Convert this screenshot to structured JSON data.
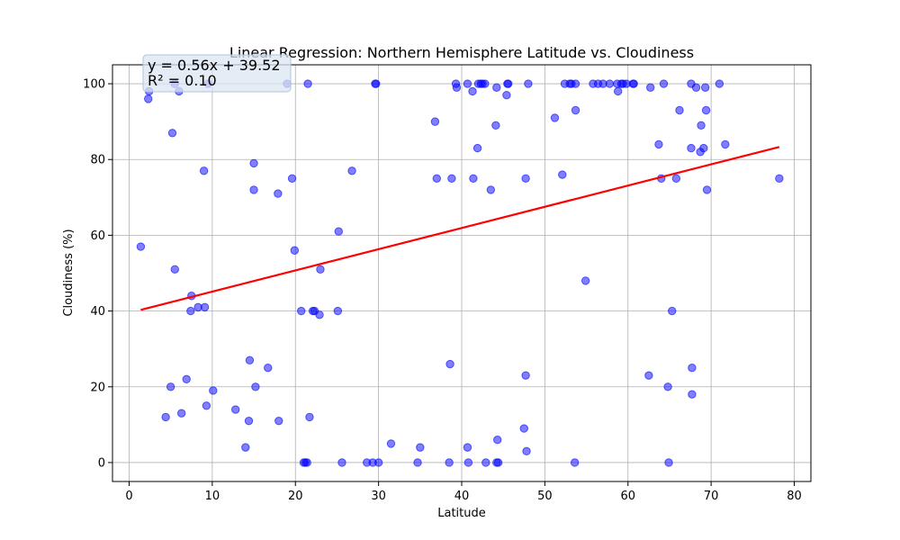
{
  "chart_data": {
    "type": "scatter",
    "title": "Linear Regression: Northern Hemisphere Latitude vs. Cloudiness",
    "xlabel": "Latitude",
    "ylabel": "Cloudiness (%)",
    "xlim": [
      -2,
      82
    ],
    "ylim": [
      -5,
      105
    ],
    "xticks": [
      0,
      10,
      20,
      30,
      40,
      50,
      60,
      70,
      80
    ],
    "yticks": [
      0,
      20,
      40,
      60,
      80,
      100
    ],
    "grid": true,
    "colors": {
      "points": "#0000ff",
      "line": "#ff0000",
      "annotation_box": "#dbe6f2"
    },
    "annotation": {
      "line1": "y = 0.56x + 39.52",
      "line2": "R² = 0.10"
    },
    "regression": {
      "slope": 0.56,
      "intercept": 39.52,
      "x_start": 1.4,
      "x_end": 78.2
    },
    "points": [
      [
        1.4,
        57
      ],
      [
        2.3,
        96
      ],
      [
        2.4,
        98
      ],
      [
        5.2,
        87
      ],
      [
        5.5,
        100
      ],
      [
        6.0,
        98
      ],
      [
        9.0,
        77
      ],
      [
        9.5,
        100
      ],
      [
        19.0,
        100
      ],
      [
        21.5,
        100
      ],
      [
        29.6,
        100
      ],
      [
        29.7,
        100
      ],
      [
        39.3,
        100
      ],
      [
        39.4,
        99
      ],
      [
        40.7,
        100
      ],
      [
        41.3,
        98
      ],
      [
        42.0,
        100
      ],
      [
        42.3,
        100
      ],
      [
        42.5,
        100
      ],
      [
        42.8,
        100
      ],
      [
        44.2,
        99
      ],
      [
        45.5,
        100
      ],
      [
        45.6,
        100
      ],
      [
        45.4,
        97
      ],
      [
        48.0,
        100
      ],
      [
        52.4,
        100
      ],
      [
        53.0,
        100
      ],
      [
        53.2,
        100
      ],
      [
        53.7,
        100
      ],
      [
        55.8,
        100
      ],
      [
        56.4,
        100
      ],
      [
        57.0,
        100
      ],
      [
        57.8,
        100
      ],
      [
        58.7,
        100
      ],
      [
        59.2,
        100
      ],
      [
        59.4,
        100
      ],
      [
        59.8,
        100
      ],
      [
        60.6,
        100
      ],
      [
        60.7,
        100
      ],
      [
        62.7,
        99
      ],
      [
        64.3,
        100
      ],
      [
        67.6,
        100
      ],
      [
        68.2,
        99
      ],
      [
        69.3,
        99
      ],
      [
        71.0,
        100
      ],
      [
        58.8,
        98
      ],
      [
        36.8,
        90
      ],
      [
        51.2,
        91
      ],
      [
        53.7,
        93
      ],
      [
        44.1,
        89
      ],
      [
        41.9,
        83
      ],
      [
        66.2,
        93
      ],
      [
        69.4,
        93
      ],
      [
        68.8,
        89
      ],
      [
        63.7,
        84
      ],
      [
        67.6,
        83
      ],
      [
        69.1,
        83
      ],
      [
        68.7,
        82
      ],
      [
        71.7,
        84
      ],
      [
        15.0,
        79
      ],
      [
        26.8,
        77
      ],
      [
        15.0,
        72
      ],
      [
        17.9,
        71
      ],
      [
        19.6,
        75
      ],
      [
        37.0,
        75
      ],
      [
        38.8,
        75
      ],
      [
        41.4,
        75
      ],
      [
        43.5,
        72
      ],
      [
        47.7,
        75
      ],
      [
        52.1,
        76
      ],
      [
        64.0,
        75
      ],
      [
        65.8,
        75
      ],
      [
        69.5,
        72
      ],
      [
        78.2,
        75
      ],
      [
        25.2,
        61
      ],
      [
        19.9,
        56
      ],
      [
        5.5,
        51
      ],
      [
        23.0,
        51
      ],
      [
        54.9,
        48
      ],
      [
        7.5,
        44
      ],
      [
        8.3,
        41
      ],
      [
        9.1,
        41
      ],
      [
        7.4,
        40
      ],
      [
        20.7,
        40
      ],
      [
        22.1,
        40
      ],
      [
        22.3,
        40
      ],
      [
        22.9,
        39
      ],
      [
        25.1,
        40
      ],
      [
        65.3,
        40
      ],
      [
        14.5,
        27
      ],
      [
        16.7,
        25
      ],
      [
        38.6,
        26
      ],
      [
        47.7,
        23
      ],
      [
        62.5,
        23
      ],
      [
        67.7,
        25
      ],
      [
        5.0,
        20
      ],
      [
        6.9,
        22
      ],
      [
        15.2,
        20
      ],
      [
        64.8,
        20
      ],
      [
        67.7,
        18
      ],
      [
        10.1,
        19
      ],
      [
        9.3,
        15
      ],
      [
        12.8,
        14
      ],
      [
        6.3,
        13
      ],
      [
        4.4,
        12
      ],
      [
        14.4,
        11
      ],
      [
        18.0,
        11
      ],
      [
        21.7,
        12
      ],
      [
        47.5,
        9
      ],
      [
        31.5,
        5
      ],
      [
        35.0,
        4
      ],
      [
        40.7,
        4
      ],
      [
        44.3,
        6
      ],
      [
        14.0,
        4
      ],
      [
        47.8,
        3
      ],
      [
        21.0,
        0
      ],
      [
        21.2,
        0
      ],
      [
        21.4,
        0
      ],
      [
        25.6,
        0
      ],
      [
        28.6,
        0
      ],
      [
        29.3,
        0
      ],
      [
        30.0,
        0
      ],
      [
        34.7,
        0
      ],
      [
        38.5,
        0
      ],
      [
        40.8,
        0
      ],
      [
        42.9,
        0
      ],
      [
        44.2,
        0
      ],
      [
        44.4,
        0
      ],
      [
        53.6,
        0
      ],
      [
        64.9,
        0
      ]
    ]
  }
}
